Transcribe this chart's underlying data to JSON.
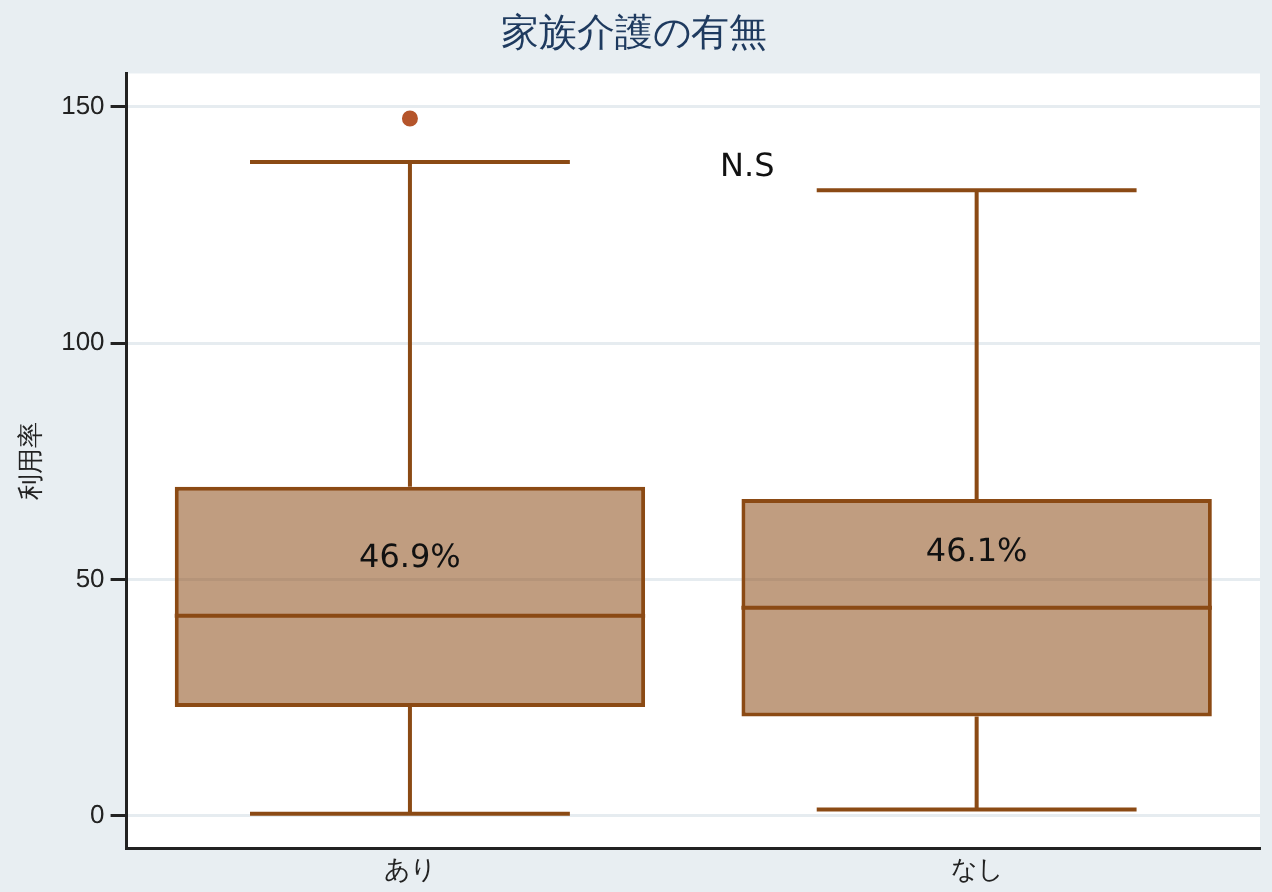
{
  "chart_data": {
    "type": "box",
    "title": "家族介護の有無",
    "ylabel": "利用率",
    "categories": [
      "あり",
      "なし"
    ],
    "color": "#8b4a14",
    "boxes": [
      {
        "low": 0.4,
        "q1": 23,
        "median": 42.3,
        "q3": 69.6,
        "high": 138.3,
        "outliers": [
          147.5
        ]
      },
      {
        "low": 1.3,
        "q1": 21,
        "median": 44,
        "q3": 67,
        "high": 132.3
      }
    ],
    "ylim": [
      -7,
      157
    ],
    "yticks": [
      0,
      50,
      100,
      150
    ],
    "grid": "y",
    "legend": false,
    "annotations": [
      "46.9%",
      "46.1%",
      "N.S"
    ]
  }
}
